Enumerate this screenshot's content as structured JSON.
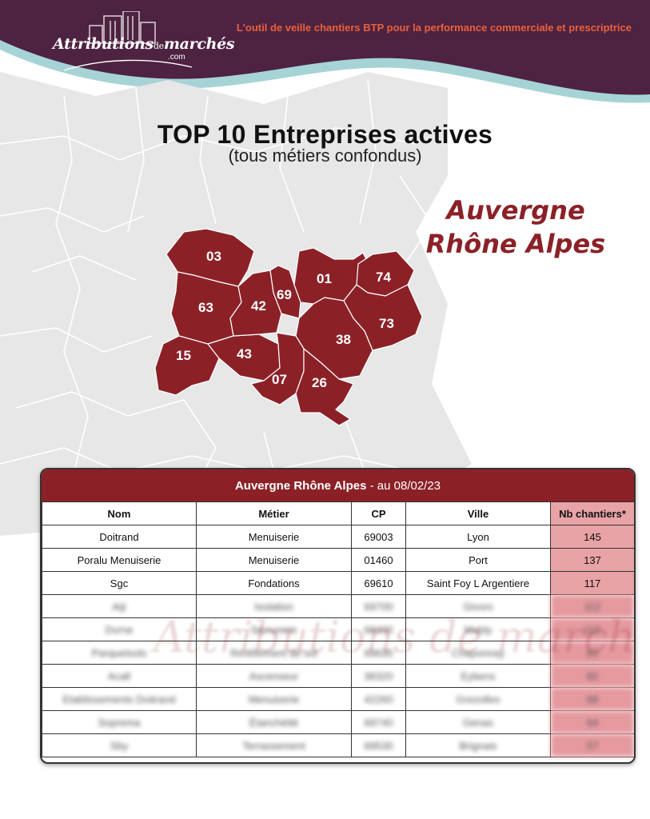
{
  "brand": {
    "logo_main": "Attributions",
    "logo_small": "de",
    "logo_end": "marchés",
    "logo_domain": ".com",
    "tagline": "L'outil de veille chantiers BTP pour la performance commerciale et prescriptrice"
  },
  "heading": {
    "title": "TOP 10 Entreprises actives",
    "subtitle": "(tous métiers confondus)"
  },
  "region": {
    "line1": "Auvergne",
    "line2": "Rhône Alpes",
    "departments": [
      "03",
      "63",
      "15",
      "43",
      "42",
      "69",
      "01",
      "74",
      "73",
      "38",
      "07",
      "26"
    ]
  },
  "colors": {
    "primary": "#8b2127",
    "header_purple": "#4e2241",
    "wave_teal": "#a6d3d6",
    "accent_orange": "#e8613c",
    "nb_cell": "#e8a3a6"
  },
  "table": {
    "title_bold": "Auvergne Rhône Alpes",
    "title_rest": " - au 08/02/23",
    "columns": [
      "Nom",
      "Métier",
      "CP",
      "Ville",
      "Nb chantiers*"
    ],
    "rows": [
      {
        "nom": "Doitrand",
        "metier": "Menuiserie",
        "cp": "69003",
        "ville": "Lyon",
        "nb": "145"
      },
      {
        "nom": "Poralu Menuiserie",
        "metier": "Menuiserie",
        "cp": "01460",
        "ville": "Port",
        "nb": "137"
      },
      {
        "nom": "Sgc",
        "metier": "Fondations",
        "cp": "69610",
        "ville": "Saint Foy L Argentiere",
        "nb": "117"
      },
      {
        "nom": "Aiji",
        "metier": "Isolation",
        "cp": "69700",
        "ville": "Givors",
        "nb": "112"
      },
      {
        "nom": "Dvrne",
        "metier": "Serrurerie",
        "cp": "69400",
        "ville": "Mably",
        "nb": "112"
      },
      {
        "nom": "Parquetsols",
        "metier": "Revêtement de sol",
        "cp": "69630",
        "ville": "Chaponnay",
        "nb": "83"
      },
      {
        "nom": "Acall",
        "metier": "Ascenseur",
        "cp": "38320",
        "ville": "Eybens",
        "nb": "82"
      },
      {
        "nom": "Etablissements Doitrand",
        "metier": "Menuiserie",
        "cp": "42260",
        "ville": "Grezolles",
        "nb": "68"
      },
      {
        "nom": "Soprema",
        "metier": "Étanchéité",
        "cp": "69740",
        "ville": "Genas",
        "nb": "64"
      },
      {
        "nom": "Sby",
        "metier": "Terrassement",
        "cp": "69530",
        "ville": "Brignais",
        "nb": "57"
      }
    ],
    "watermark": "Attributions de marchés"
  }
}
